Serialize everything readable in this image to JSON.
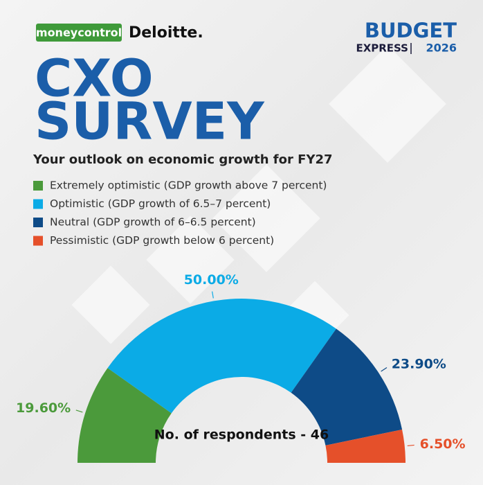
{
  "branding": {
    "left_logo": "moneycontrol",
    "partner_logo": "Deloitte.",
    "right_logo_top": "BUDGET",
    "right_logo_middle": "EXPRESS",
    "right_logo_year": "2026"
  },
  "chart_data": {
    "type": "pie",
    "title_lines": [
      "CXO",
      "SURVEY"
    ],
    "subtitle": "Your outlook on economic growth for FY27",
    "categories": [
      "Extremely optimistic (GDP growth above 7 percent)",
      "Optimistic (GDP growth of 6.5–7 percent)",
      "Neutral (GDP growth of 6–6.5 percent)",
      "Pessimistic (GDP growth below 6 percent)"
    ],
    "values": [
      19.6,
      50,
      23.9,
      6.5
    ],
    "value_labels": [
      "19.60%",
      "50.00%",
      "23.90%",
      "6.50%"
    ],
    "colors": [
      "#4b9a3b",
      "#0babe6",
      "#0e4b87",
      "#e5502a"
    ],
    "annotation": "No. of respondents - 46",
    "half_donut": true
  }
}
